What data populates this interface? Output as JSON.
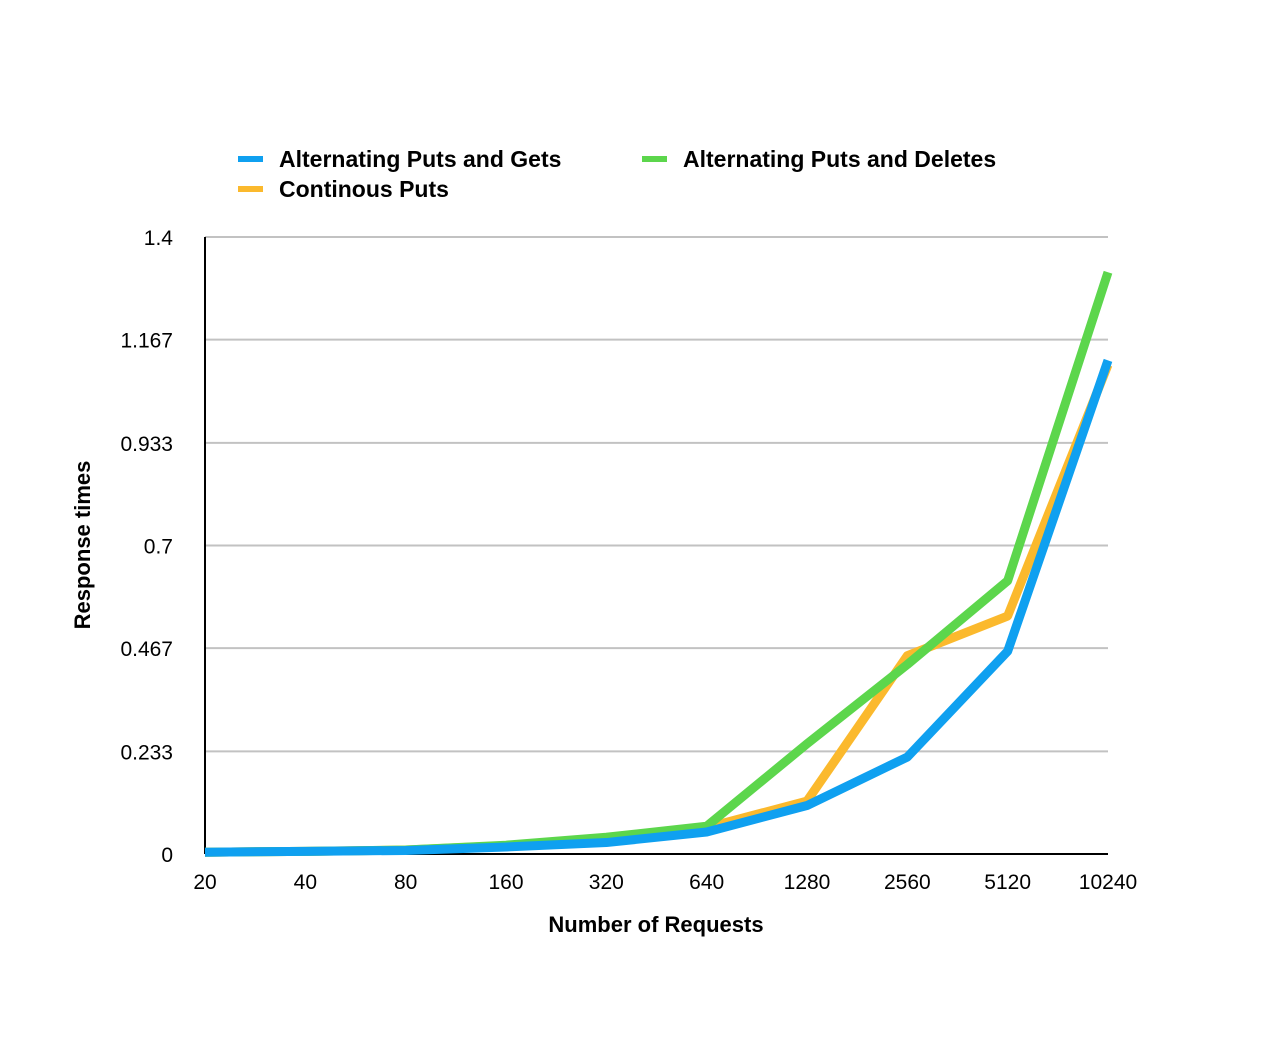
{
  "chart_data": {
    "type": "line",
    "title": "",
    "xlabel": "Number of Requests",
    "ylabel": "Response times",
    "categories": [
      "20",
      "40",
      "80",
      "160",
      "320",
      "640",
      "1280",
      "2560",
      "5120",
      "10240"
    ],
    "y_ticks": [
      "0",
      "0.233",
      "0.467",
      "0.7",
      "0.933",
      "1.167",
      "1.4"
    ],
    "ylim": [
      0,
      1.4
    ],
    "grid": true,
    "legend_position": "top",
    "series": [
      {
        "name": "Alternating Puts and Gets",
        "color": "#0fa0f0",
        "values": [
          0.004,
          0.006,
          0.008,
          0.016,
          0.026,
          0.05,
          0.11,
          0.22,
          0.46,
          1.12
        ]
      },
      {
        "name": "Continous Puts",
        "color": "#fbb92d",
        "values": [
          0.004,
          0.006,
          0.009,
          0.019,
          0.035,
          0.06,
          0.12,
          0.45,
          0.54,
          1.11
        ]
      },
      {
        "name": "Alternating Puts and Deletes",
        "color": "#5cd64c",
        "values": [
          0.004,
          0.006,
          0.009,
          0.02,
          0.038,
          0.063,
          0.25,
          0.43,
          0.62,
          1.32
        ]
      }
    ]
  }
}
